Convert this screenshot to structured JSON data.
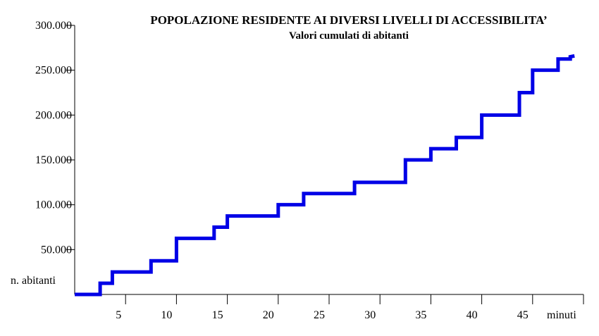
{
  "chart_data": {
    "type": "line",
    "title": "POPOLAZIONE RESIDENTE AI DIVERSI LIVELLI DI ACCESSIBILITA’",
    "subtitle": "Valori cumulati di abitanti",
    "xlabel": "minuti",
    "ylabel": "n. abitanti",
    "xlim": [
      0,
      50
    ],
    "ylim": [
      0,
      300000
    ],
    "x_ticks": [
      5,
      10,
      15,
      20,
      25,
      30,
      35,
      40,
      45
    ],
    "x_tick_labels": [
      "5",
      "10",
      "15",
      "20",
      "25",
      "30",
      "35",
      "40",
      "45"
    ],
    "y_ticks": [
      50000,
      100000,
      150000,
      200000,
      250000,
      300000
    ],
    "y_tick_labels": [
      "50.000",
      "100.000",
      "150.000",
      "200.000",
      "250.000",
      "300.000"
    ],
    "series": [
      {
        "color": "#0000e6",
        "step": "post",
        "x": [
          0,
          2.5,
          3.7,
          7.5,
          10,
          13.7,
          15,
          20,
          22.5,
          27.5,
          32.5,
          35,
          37.5,
          40,
          43.7,
          45,
          47.5,
          48.7
        ],
        "y": [
          0,
          12500,
          25000,
          37500,
          62500,
          75000,
          87500,
          100000,
          112500,
          125000,
          150000,
          162500,
          175000,
          200000,
          225000,
          250000,
          262500,
          265000
        ]
      }
    ]
  }
}
